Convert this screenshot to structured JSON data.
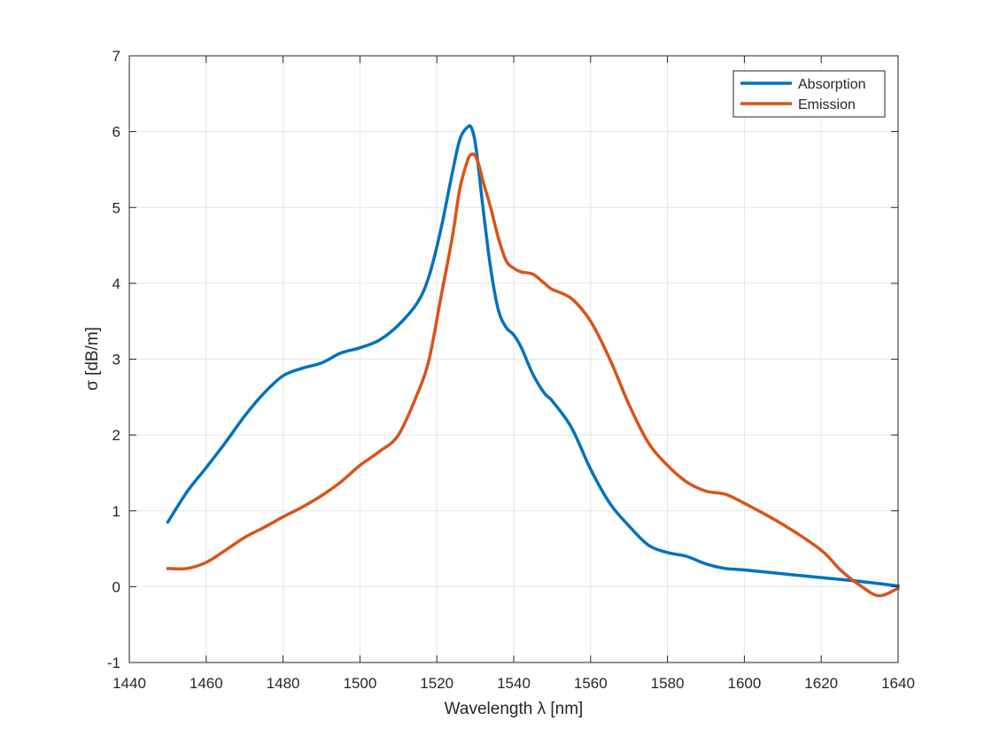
{
  "chart_data": {
    "type": "line",
    "xlabel": "Wavelength λ [nm]",
    "ylabel": "σ [dB/m]",
    "xlim": [
      1440,
      1640
    ],
    "ylim": [
      -1,
      7
    ],
    "xticks": [
      1440,
      1460,
      1480,
      1500,
      1520,
      1540,
      1560,
      1580,
      1600,
      1620,
      1640
    ],
    "yticks": [
      -1,
      0,
      1,
      2,
      3,
      4,
      5,
      6,
      7
    ],
    "grid": true,
    "legend_position": "top-right",
    "series": [
      {
        "name": "Absorption",
        "color": "#0072BD",
        "x": [
          1450,
          1455,
          1460,
          1465,
          1470,
          1475,
          1480,
          1485,
          1490,
          1495,
          1500,
          1505,
          1510,
          1515,
          1518,
          1521,
          1524,
          1526,
          1528,
          1529,
          1530,
          1531,
          1532,
          1534,
          1536,
          1538,
          1540,
          1542,
          1545,
          1548,
          1550,
          1555,
          1560,
          1565,
          1570,
          1575,
          1580,
          1585,
          1590,
          1595,
          1600,
          1610,
          1620,
          1630,
          1640
        ],
        "y": [
          0.85,
          1.25,
          1.57,
          1.9,
          2.25,
          2.55,
          2.78,
          2.88,
          2.95,
          3.08,
          3.15,
          3.25,
          3.45,
          3.75,
          4.1,
          4.7,
          5.45,
          5.9,
          6.06,
          6.05,
          5.85,
          5.45,
          5.0,
          4.2,
          3.65,
          3.42,
          3.32,
          3.15,
          2.8,
          2.55,
          2.45,
          2.1,
          1.55,
          1.1,
          0.8,
          0.55,
          0.45,
          0.4,
          0.3,
          0.24,
          0.22,
          0.17,
          0.12,
          0.07,
          0.01
        ]
      },
      {
        "name": "Emission",
        "color": "#D95319",
        "x": [
          1450,
          1455,
          1460,
          1465,
          1470,
          1475,
          1480,
          1485,
          1490,
          1495,
          1500,
          1505,
          1510,
          1515,
          1518,
          1521,
          1524,
          1526,
          1528,
          1529,
          1530,
          1531,
          1532,
          1534,
          1536,
          1538,
          1540,
          1542,
          1545,
          1548,
          1550,
          1555,
          1560,
          1565,
          1570,
          1575,
          1580,
          1585,
          1590,
          1595,
          1600,
          1610,
          1620,
          1625,
          1630,
          1635,
          1640
        ],
        "y": [
          0.24,
          0.24,
          0.32,
          0.48,
          0.65,
          0.78,
          0.92,
          1.05,
          1.2,
          1.38,
          1.6,
          1.78,
          2.0,
          2.55,
          3.0,
          3.8,
          4.6,
          5.25,
          5.62,
          5.7,
          5.68,
          5.55,
          5.35,
          5.0,
          4.6,
          4.3,
          4.2,
          4.15,
          4.12,
          4.0,
          3.92,
          3.8,
          3.5,
          3.0,
          2.4,
          1.9,
          1.6,
          1.38,
          1.26,
          1.22,
          1.1,
          0.82,
          0.48,
          0.22,
          0.02,
          -0.12,
          -0.02
        ]
      }
    ]
  }
}
